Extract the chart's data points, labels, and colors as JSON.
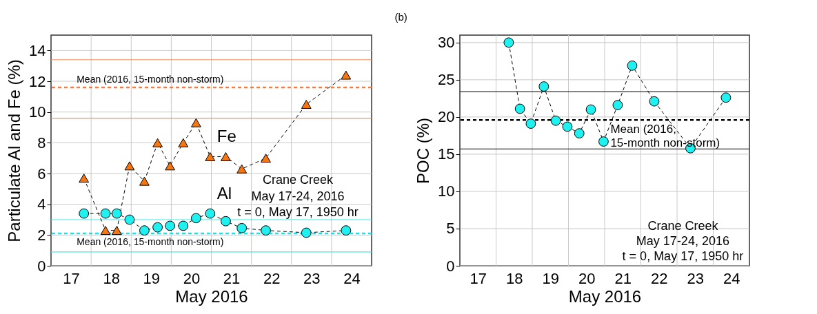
{
  "chart_data": [
    {
      "type": "line",
      "xlabel": "May 2016",
      "ylabel": "Particulate Al and Fe (%)",
      "xlim": [
        17,
        25
      ],
      "ylim": [
        0,
        15
      ],
      "xticks": [
        {
          "value": 17.5,
          "label": "17"
        },
        {
          "value": 18.5,
          "label": "18"
        },
        {
          "value": 19.5,
          "label": "19"
        },
        {
          "value": 20.5,
          "label": "20"
        },
        {
          "value": 21.5,
          "label": "21"
        },
        {
          "value": 22.5,
          "label": "22"
        },
        {
          "value": 23.5,
          "label": "23"
        },
        {
          "value": 24.5,
          "label": "24"
        },
        {
          "value": 18,
          "label": null
        },
        {
          "value": 19,
          "label": null
        },
        {
          "value": 20,
          "label": null
        },
        {
          "value": 21,
          "label": null
        },
        {
          "value": 22,
          "label": null
        },
        {
          "value": 23,
          "label": null
        },
        {
          "value": 24,
          "label": null
        }
      ],
      "yticks": [
        0,
        2,
        4,
        6,
        8,
        10,
        12,
        14
      ],
      "grid": true,
      "line_style": "dashed",
      "x": [
        17.82,
        18.36,
        18.64,
        18.96,
        19.33,
        19.66,
        19.97,
        20.3,
        20.62,
        20.97,
        21.36,
        21.76,
        22.36,
        23.37,
        24.36
      ],
      "series": [
        {
          "name": "Fe",
          "color": "#f7760f",
          "marker": "triangle",
          "values": [
            5.7,
            2.3,
            2.3,
            6.5,
            5.5,
            8.0,
            6.5,
            8.0,
            9.3,
            7.1,
            7.1,
            6.3,
            7.0,
            10.5,
            12.4
          ]
        },
        {
          "name": "Al",
          "color": "#1ff0f0",
          "marker": "circle",
          "values": [
            3.4,
            3.4,
            3.4,
            3.0,
            2.3,
            2.5,
            2.6,
            2.6,
            3.1,
            3.4,
            2.9,
            2.45,
            2.3,
            2.15,
            2.3
          ]
        }
      ],
      "ref_lines": [
        {
          "axis": "y",
          "value": 13.4,
          "color": "#f98c5c",
          "line_style": "solid"
        },
        {
          "axis": "y",
          "value": 9.6,
          "color": "#f98c5c",
          "line_style": "solid"
        },
        {
          "axis": "y",
          "value": 3.0,
          "color": "#40e8e8",
          "line_style": "solid"
        },
        {
          "axis": "y",
          "value": 0.9,
          "color": "#40e8e8",
          "line_style": "solid"
        },
        {
          "axis": "y",
          "value": 11.6,
          "label": "Mean (2016, 15-month non-storm)",
          "color": "#f47c3c",
          "line_style": "dashed"
        },
        {
          "axis": "y",
          "value": 2.1,
          "label": "Mean (2016, 15-month non-storm)",
          "color": "#1ee0e6",
          "line_style": "dashed"
        }
      ],
      "annotations": [
        "Crane Creek",
        "May 17-24, 2016",
        "t = 0, May 17, 1950 hr"
      ]
    },
    {
      "type": "line",
      "title": "(b)",
      "xlabel": "May 2016",
      "ylabel": "POC (%)",
      "xlim": [
        17,
        25
      ],
      "ylim": [
        0,
        31
      ],
      "xticks": [
        {
          "value": 17.5,
          "label": "17"
        },
        {
          "value": 18.5,
          "label": "18"
        },
        {
          "value": 19.5,
          "label": "19"
        },
        {
          "value": 20.5,
          "label": "20"
        },
        {
          "value": 21.5,
          "label": "21"
        },
        {
          "value": 22.5,
          "label": "22"
        },
        {
          "value": 23.5,
          "label": "23"
        },
        {
          "value": 24.5,
          "label": "24"
        },
        {
          "value": 18,
          "label": null
        },
        {
          "value": 19,
          "label": null
        },
        {
          "value": 20,
          "label": null
        },
        {
          "value": 21,
          "label": null
        },
        {
          "value": 22,
          "label": null
        },
        {
          "value": 23,
          "label": null
        },
        {
          "value": 24,
          "label": null
        }
      ],
      "yticks": [
        0,
        5,
        10,
        15,
        20,
        25,
        30
      ],
      "grid": true,
      "line_style": "dashed",
      "marker": "circle",
      "x": [
        18.35,
        18.66,
        18.96,
        19.32,
        19.65,
        19.97,
        20.3,
        20.62,
        20.97,
        21.36,
        21.76,
        22.37,
        23.37,
        24.35
      ],
      "values": [
        30.0,
        21.1,
        19.1,
        24.1,
        19.5,
        18.7,
        17.8,
        21.0,
        16.7,
        21.6,
        26.9,
        22.1,
        15.8,
        22.6
      ],
      "color": "#1ff0f0",
      "ref_lines": [
        {
          "axis": "y",
          "value": 23.4,
          "color": "#333333",
          "line_style": "solid"
        },
        {
          "axis": "y",
          "value": 15.7,
          "color": "#333333",
          "line_style": "solid"
        },
        {
          "axis": "y",
          "value": 19.6,
          "label": "Mean (2016,\n15-month non-storm)",
          "color": "#000000",
          "line_style": "dashed"
        }
      ],
      "annotations": [
        "Crane Creek",
        "May 17-24, 2016",
        "t = 0, May 17, 1950 hr"
      ]
    }
  ]
}
